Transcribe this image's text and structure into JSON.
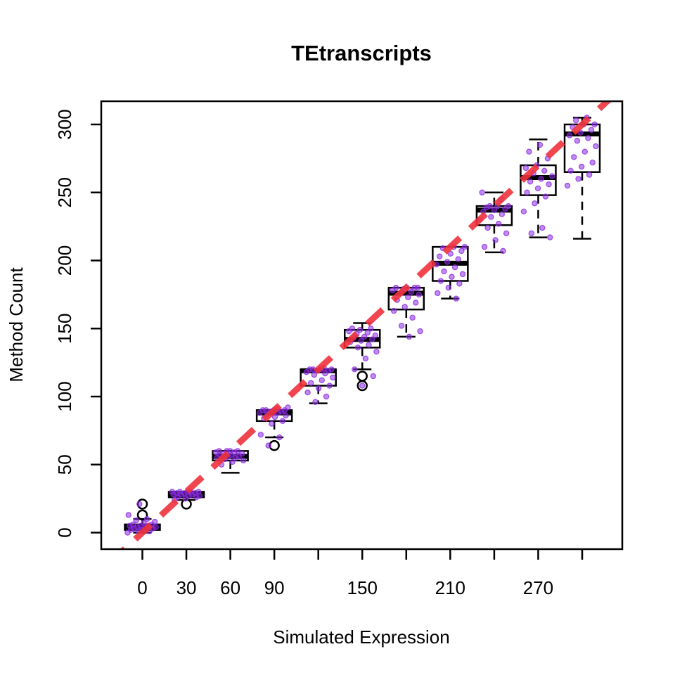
{
  "chart_data": {
    "type": "boxplot",
    "title": "TEtranscripts",
    "xlabel": "Simulated Expression",
    "ylabel": "Method Count",
    "x_ticks_labeled": [
      "0",
      "30",
      "60",
      "90",
      "150",
      "210",
      "270"
    ],
    "y_ticks": [
      0,
      50,
      100,
      150,
      200,
      250,
      300
    ],
    "ylim": [
      -12,
      318
    ],
    "categories": [
      0,
      30,
      60,
      90,
      120,
      150,
      180,
      210,
      240,
      270,
      300
    ],
    "boxes": [
      {
        "x": 0,
        "min": 0,
        "q1": 2,
        "median": 4,
        "q3": 6,
        "max": 10,
        "outliers": [
          13,
          21
        ]
      },
      {
        "x": 30,
        "min": 24,
        "q1": 26,
        "median": 28,
        "q3": 30,
        "max": 30,
        "outliers": [
          21
        ]
      },
      {
        "x": 60,
        "min": 44,
        "q1": 53,
        "median": 56,
        "q3": 60,
        "max": 60,
        "outliers": []
      },
      {
        "x": 90,
        "min": 70,
        "q1": 82,
        "median": 88,
        "q3": 90,
        "max": 90,
        "outliers": [
          64
        ]
      },
      {
        "x": 120,
        "min": 95,
        "q1": 108,
        "median": 119,
        "q3": 120,
        "max": 120,
        "outliers": []
      },
      {
        "x": 150,
        "min": 120,
        "q1": 136,
        "median": 142,
        "q3": 149,
        "max": 154,
        "outliers": [
          108,
          115
        ]
      },
      {
        "x": 180,
        "min": 144,
        "q1": 164,
        "median": 176,
        "q3": 180,
        "max": 180,
        "outliers": []
      },
      {
        "x": 210,
        "min": 172,
        "q1": 185,
        "median": 198,
        "q3": 210,
        "max": 210,
        "outliers": []
      },
      {
        "x": 240,
        "min": 206,
        "q1": 226,
        "median": 237,
        "q3": 240,
        "max": 250,
        "outliers": []
      },
      {
        "x": 270,
        "min": 217,
        "q1": 248,
        "median": 261,
        "q3": 270,
        "max": 289,
        "outliers": []
      },
      {
        "x": 300,
        "min": 216,
        "q1": 265,
        "median": 293,
        "q3": 300,
        "max": 305,
        "outliers": []
      }
    ],
    "points": [
      {
        "x": 0,
        "values": [
          0,
          1,
          1,
          2,
          2,
          3,
          3,
          4,
          4,
          4,
          5,
          5,
          5,
          6,
          6,
          7,
          8,
          9,
          10,
          13,
          21
        ]
      },
      {
        "x": 30,
        "values": [
          24,
          25,
          26,
          26,
          27,
          27,
          28,
          28,
          28,
          29,
          29,
          29,
          30,
          30,
          30,
          30,
          30
        ]
      },
      {
        "x": 60,
        "values": [
          50,
          52,
          53,
          54,
          55,
          55,
          56,
          56,
          57,
          57,
          58,
          58,
          59,
          59,
          60,
          60,
          60,
          60
        ]
      },
      {
        "x": 90,
        "values": [
          64,
          70,
          72,
          80,
          82,
          84,
          85,
          86,
          87,
          88,
          88,
          89,
          89,
          90,
          90,
          90,
          90,
          91,
          92
        ]
      },
      {
        "x": 120,
        "values": [
          96,
          100,
          103,
          106,
          108,
          110,
          112,
          114,
          116,
          117,
          118,
          119,
          119,
          120,
          120,
          120,
          120,
          121
        ]
      },
      {
        "x": 150,
        "values": [
          108,
          115,
          120,
          128,
          133,
          136,
          138,
          140,
          141,
          142,
          143,
          144,
          145,
          146,
          147,
          148,
          149,
          150,
          150
        ]
      },
      {
        "x": 180,
        "values": [
          144,
          148,
          152,
          158,
          163,
          166,
          169,
          171,
          173,
          175,
          176,
          177,
          178,
          179,
          180,
          180,
          180,
          180
        ]
      },
      {
        "x": 210,
        "values": [
          172,
          176,
          180,
          183,
          185,
          188,
          190,
          192,
          195,
          197,
          199,
          201,
          203,
          205,
          207,
          209,
          210,
          210
        ]
      },
      {
        "x": 240,
        "values": [
          207,
          210,
          215,
          220,
          224,
          227,
          230,
          232,
          234,
          236,
          237,
          238,
          239,
          240,
          240,
          240,
          245,
          250
        ]
      },
      {
        "x": 270,
        "values": [
          217,
          220,
          224,
          236,
          242,
          247,
          250,
          253,
          256,
          258,
          260,
          262,
          264,
          266,
          268,
          270,
          275,
          280,
          285
        ]
      },
      {
        "x": 300,
        "values": [
          255,
          260,
          263,
          266,
          269,
          272,
          276,
          280,
          284,
          288,
          290,
          292,
          294,
          296,
          298,
          300,
          300,
          303,
          305
        ]
      }
    ],
    "reference_line": {
      "slope": 1,
      "intercept": 0,
      "color": "#f0323c",
      "style": "dashed"
    },
    "point_color": "#8a2be2",
    "grid": false
  }
}
